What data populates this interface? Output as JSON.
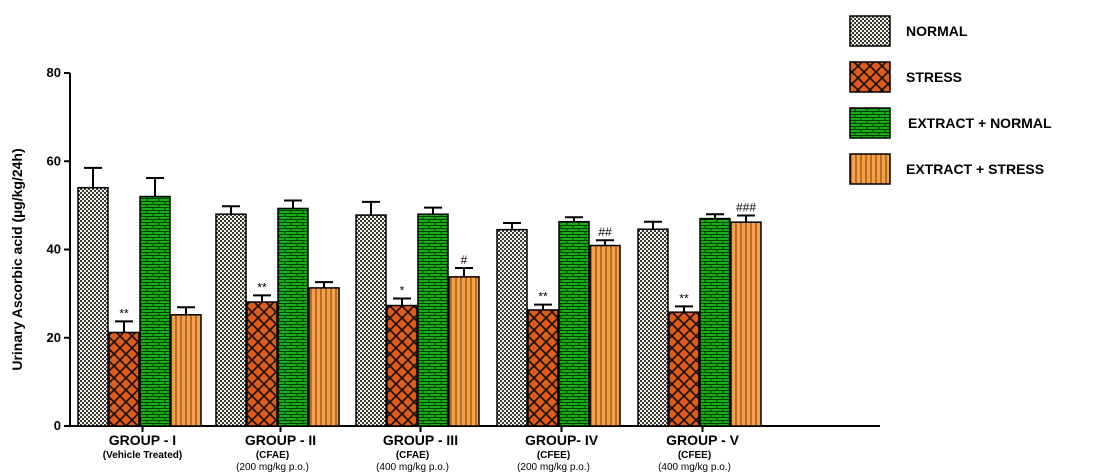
{
  "chart_data": {
    "type": "bar",
    "ylabel": "Urinary Ascorbic acid (µg/kg/24h)",
    "ylim": [
      0,
      80
    ],
    "yticks": [
      0,
      20,
      40,
      60,
      80
    ],
    "categories": [
      {
        "label": "GROUP - I",
        "sub1": "(Vehicle Treated)",
        "sub2": ""
      },
      {
        "label": "GROUP - II",
        "sub1": "(CFAE)",
        "sub2": "(200 mg/kg p.o.)"
      },
      {
        "label": "GROUP - III",
        "sub1": "(CFAE)",
        "sub2": "(400 mg/kg p.o.)"
      },
      {
        "label": "GROUP- IV",
        "sub1": "(CFEE)",
        "sub2": "(200 mg/kg p.o.)"
      },
      {
        "label": "GROUP - V",
        "sub1": "(CFEE)",
        "sub2": "(400 mg/kg p.o.)"
      }
    ],
    "series": [
      {
        "name": "NORMAL",
        "pattern": "dots",
        "color": "#f5f2e6",
        "values": [
          54,
          48,
          47.8,
          44.5,
          44.6
        ],
        "errors": [
          4.5,
          1.8,
          3.0,
          1.5,
          1.7
        ],
        "annotations": [
          "",
          "",
          "",
          "",
          ""
        ]
      },
      {
        "name": "STRESS",
        "pattern": "crosshatch",
        "color": "#e05a1a",
        "values": [
          21.2,
          28.1,
          27.3,
          26.3,
          25.8
        ],
        "errors": [
          2.5,
          1.5,
          1.6,
          1.2,
          1.3
        ],
        "annotations": [
          "**",
          "**",
          "*",
          "**",
          "**"
        ]
      },
      {
        "name": "EXTRACT + NORMAL",
        "pattern": "bricks",
        "color": "#16b016",
        "values": [
          52,
          49.3,
          48,
          46.3,
          47
        ],
        "errors": [
          4.2,
          1.8,
          1.5,
          1.0,
          1.0
        ],
        "annotations": [
          "",
          "",
          "",
          "",
          ""
        ]
      },
      {
        "name": "EXTRACT + STRESS",
        "pattern": "vlines",
        "color": "#f5a04a",
        "values": [
          25.2,
          31.3,
          33.8,
          40.9,
          46.2
        ],
        "errors": [
          1.7,
          1.3,
          2.0,
          1.2,
          1.5
        ],
        "annotations": [
          "",
          "",
          "#",
          "##",
          "###"
        ]
      }
    ],
    "legend_position": "top-right",
    "grid": false
  }
}
